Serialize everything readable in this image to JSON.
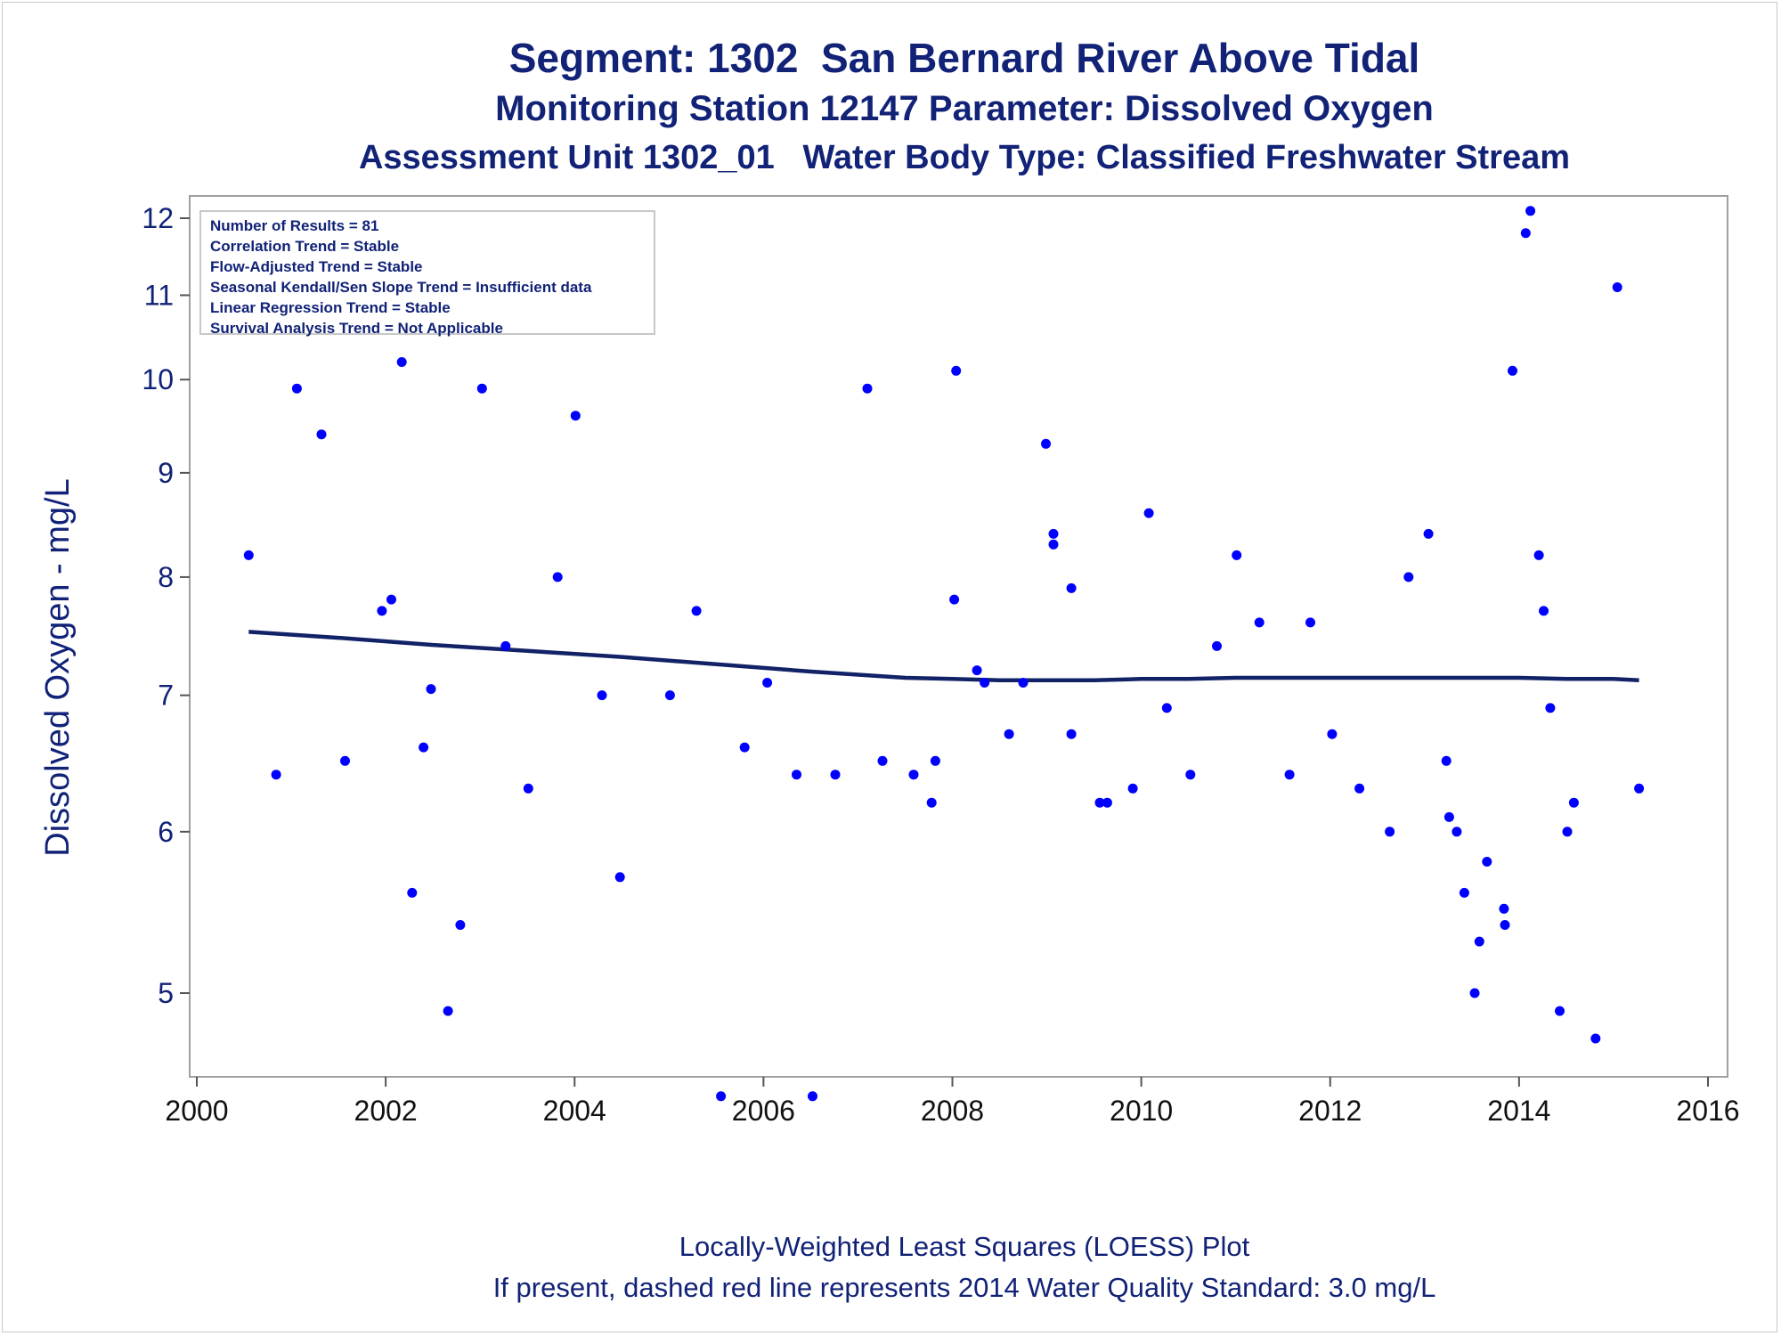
{
  "titles": {
    "line1": "Segment: 1302  San Bernard River Above Tidal",
    "line2": "Monitoring Station 12147 Parameter: Dissolved Oxygen",
    "line3": "Assessment Unit 1302_01   Water Body Type: Classified Freshwater Stream"
  },
  "footnotes": {
    "line1": "Locally-Weighted Least Squares (LOESS) Plot",
    "line2": "If present, dashed red line represents 2014 Water Quality Standard: 3.0 mg/L"
  },
  "stats_box": [
    "Number of Results = 81",
    "Correlation Trend = Stable",
    "Flow-Adjusted Trend = Stable",
    "Seasonal Kendall/Sen Slope Trend = Insufficient data",
    "Linear Regression Trend = Stable",
    "Survival Analysis Trend = Not Applicable"
  ],
  "colors": {
    "text": "#112277",
    "points": "#0000ff",
    "loess": "#112266",
    "axis": "#a0a0a0"
  },
  "chart_data": {
    "type": "scatter",
    "xlabel": "",
    "ylabel": "Dissolved Oxygen - mg/L",
    "y_scale": "log",
    "xlim": [
      2000,
      2016
    ],
    "ylim": [
      4.45,
      12.3
    ],
    "x_ticks": [
      "2000",
      "2002",
      "2004",
      "2006",
      "2008",
      "2010",
      "2012",
      "2014",
      "2016"
    ],
    "y_ticks": [
      "5",
      "6",
      "7",
      "8",
      "9",
      "10",
      "11",
      "12"
    ],
    "grid": false,
    "points": [
      [
        2000.55,
        8.2
      ],
      [
        2000.84,
        6.4
      ],
      [
        2001.06,
        9.9
      ],
      [
        2001.32,
        9.4
      ],
      [
        2001.57,
        6.5
      ],
      [
        2001.96,
        7.7
      ],
      [
        2002.06,
        7.8
      ],
      [
        2002.17,
        10.2
      ],
      [
        2002.28,
        5.6
      ],
      [
        2002.4,
        6.6
      ],
      [
        2002.48,
        7.05
      ],
      [
        2002.66,
        4.9
      ],
      [
        2002.79,
        5.4
      ],
      [
        2003.02,
        9.9
      ],
      [
        2003.27,
        7.4
      ],
      [
        2003.51,
        6.3
      ],
      [
        2003.82,
        8.0
      ],
      [
        2004.01,
        9.6
      ],
      [
        2004.29,
        7.0
      ],
      [
        2004.48,
        5.7
      ],
      [
        2005.01,
        7.0
      ],
      [
        2005.29,
        7.7
      ],
      [
        2005.55,
        4.45
      ],
      [
        2005.8,
        6.6
      ],
      [
        2006.04,
        7.1
      ],
      [
        2006.35,
        6.4
      ],
      [
        2006.52,
        4.45
      ],
      [
        2006.76,
        6.4
      ],
      [
        2007.1,
        9.9
      ],
      [
        2007.26,
        6.5
      ],
      [
        2007.59,
        6.4
      ],
      [
        2007.78,
        6.2
      ],
      [
        2007.82,
        6.5
      ],
      [
        2008.02,
        7.8
      ],
      [
        2008.04,
        10.1
      ],
      [
        2008.26,
        7.2
      ],
      [
        2008.34,
        7.1
      ],
      [
        2008.6,
        6.7
      ],
      [
        2008.75,
        7.1
      ],
      [
        2008.99,
        9.3
      ],
      [
        2009.07,
        8.4
      ],
      [
        2009.07,
        8.3
      ],
      [
        2009.26,
        7.9
      ],
      [
        2009.26,
        6.7
      ],
      [
        2009.56,
        6.2
      ],
      [
        2009.64,
        6.2
      ],
      [
        2009.91,
        6.3
      ],
      [
        2010.08,
        8.6
      ],
      [
        2010.27,
        6.9
      ],
      [
        2010.52,
        6.4
      ],
      [
        2010.8,
        7.4
      ],
      [
        2011.01,
        8.2
      ],
      [
        2011.25,
        7.6
      ],
      [
        2011.57,
        6.4
      ],
      [
        2011.79,
        7.6
      ],
      [
        2012.02,
        6.7
      ],
      [
        2012.31,
        6.3
      ],
      [
        2012.63,
        6.0
      ],
      [
        2012.83,
        8.0
      ],
      [
        2013.04,
        8.4
      ],
      [
        2013.23,
        6.5
      ],
      [
        2013.26,
        6.1
      ],
      [
        2013.34,
        6.0
      ],
      [
        2013.42,
        5.6
      ],
      [
        2013.53,
        5.0
      ],
      [
        2013.58,
        5.3
      ],
      [
        2013.66,
        5.8
      ],
      [
        2013.84,
        5.5
      ],
      [
        2013.85,
        5.4
      ],
      [
        2013.93,
        10.1
      ],
      [
        2014.07,
        11.8
      ],
      [
        2014.12,
        12.1
      ],
      [
        2014.21,
        8.2
      ],
      [
        2014.26,
        7.7
      ],
      [
        2014.33,
        6.9
      ],
      [
        2014.43,
        4.9
      ],
      [
        2014.51,
        6.0
      ],
      [
        2014.58,
        6.2
      ],
      [
        2014.81,
        4.75
      ],
      [
        2015.04,
        11.1
      ],
      [
        2015.27,
        6.3
      ]
    ],
    "loess": [
      [
        2000.55,
        7.52
      ],
      [
        2001.5,
        7.47
      ],
      [
        2002.5,
        7.41
      ],
      [
        2003.5,
        7.36
      ],
      [
        2004.5,
        7.31
      ],
      [
        2005.5,
        7.25
      ],
      [
        2006.5,
        7.19
      ],
      [
        2007.5,
        7.14
      ],
      [
        2008.0,
        7.13
      ],
      [
        2008.5,
        7.12
      ],
      [
        2009.0,
        7.12
      ],
      [
        2009.5,
        7.12
      ],
      [
        2010.0,
        7.13
      ],
      [
        2010.5,
        7.13
      ],
      [
        2011.0,
        7.14
      ],
      [
        2012.0,
        7.14
      ],
      [
        2013.0,
        7.14
      ],
      [
        2014.0,
        7.14
      ],
      [
        2014.5,
        7.13
      ],
      [
        2015.0,
        7.13
      ],
      [
        2015.27,
        7.12
      ]
    ]
  }
}
